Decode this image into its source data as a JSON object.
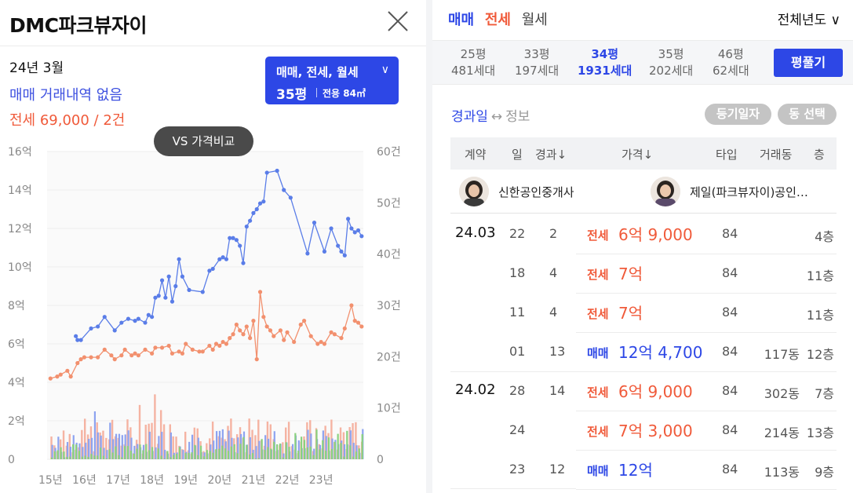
{
  "header": {
    "title": "DMC파크뷰자이"
  },
  "summary": {
    "month": "24년 3월",
    "trade_status": "매매 거래내역 없음",
    "jeonse_status": "전세 69,000 / 2건"
  },
  "type_button": {
    "deal_types": "매매, 전세, 월세",
    "pyeong": "35평",
    "area": "전용 84㎡"
  },
  "vs_badge": "VS 가격비교",
  "chart": {
    "y_left_ticks": [
      "16억",
      "14억",
      "12억",
      "10억",
      "8억",
      "6억",
      "4억",
      "2억",
      "0"
    ],
    "y_right_ticks": [
      "60건",
      "50건",
      "40건",
      "30건",
      "20건",
      "10건",
      "0"
    ],
    "x_ticks": [
      "15년",
      "16년",
      "17년",
      "18년",
      "19년",
      "20년",
      "21년",
      "22년",
      "23년"
    ]
  },
  "chart_data": {
    "type": "line",
    "x_unit": "year",
    "ylim": [
      0,
      16
    ],
    "y2lim": [
      0,
      60
    ],
    "grid": true,
    "colors": {
      "trade": "#5a7de8",
      "jeonse": "#f2906e",
      "vol_trade": "#8da3f0",
      "vol_jeonse": "#f5b3a2",
      "vol_monthly": "#8ad17e"
    },
    "series": [
      {
        "x": [
          2015.75,
          2015.8,
          2015.9,
          2016.2,
          2016.4,
          2016.6,
          2016.9,
          2017.1,
          2017.3,
          2017.5,
          2017.6,
          2017.8,
          2017.9,
          2018.0,
          2018.1,
          2018.2,
          2018.3,
          2018.4,
          2018.5,
          2018.6,
          2018.7,
          2018.8,
          2018.9,
          2019.1,
          2019.5,
          2019.7,
          2019.8,
          2020.0,
          2020.1,
          2020.2,
          2020.3,
          2020.4,
          2020.5,
          2020.6,
          2020.7,
          2020.8,
          2020.9,
          2021.0,
          2021.1,
          2021.2,
          2021.3,
          2021.4,
          2021.7,
          2021.9,
          2022.1,
          2022.6,
          2022.8,
          2023.1,
          2023.3,
          2023.5,
          2023.6,
          2023.7,
          2023.8,
          2023.9,
          2024.0,
          2024.1,
          2024.2
        ],
        "y": [
          6.4,
          6.2,
          6.2,
          6.8,
          6.9,
          7.4,
          6.7,
          7.1,
          7.3,
          7.2,
          7.3,
          7.1,
          7.5,
          7.4,
          8.4,
          8.5,
          9.3,
          8.4,
          9.5,
          8.2,
          9.0,
          10.4,
          9.5,
          8.8,
          8.7,
          9.8,
          9.9,
          10.4,
          10.5,
          10.4,
          11.5,
          11.5,
          11.4,
          11.1,
          10.2,
          12.1,
          12.4,
          12.8,
          13.0,
          13.3,
          13.4,
          14.9,
          15.0,
          14.0,
          13.6,
          10.7,
          12.3,
          10.8,
          12.0,
          11.1,
          10.8,
          10.6,
          12.5,
          12.0,
          11.8,
          11.9,
          11.6
        ],
        "color": "#5a7de8"
      },
      {
        "x": [
          2015.0,
          2015.2,
          2015.3,
          2015.5,
          2015.6,
          2015.8,
          2015.9,
          2016.0,
          2016.2,
          2016.4,
          2016.6,
          2016.8,
          2016.9,
          2017.1,
          2017.2,
          2017.4,
          2017.5,
          2017.6,
          2017.8,
          2018.0,
          2018.1,
          2018.3,
          2018.5,
          2018.6,
          2018.8,
          2018.9,
          2019.0,
          2019.2,
          2019.4,
          2019.5,
          2019.7,
          2019.8,
          2019.9,
          2020.0,
          2020.1,
          2020.2,
          2020.3,
          2020.4,
          2020.5,
          2020.6,
          2020.7,
          2020.8,
          2020.9,
          2021.0,
          2021.1,
          2021.2,
          2021.3,
          2021.4,
          2021.5,
          2021.6,
          2021.8,
          2021.9,
          2022.0,
          2022.2,
          2022.4,
          2022.5,
          2022.7,
          2022.9,
          2023.0,
          2023.1,
          2023.3,
          2023.4,
          2023.6,
          2023.7,
          2023.9,
          2024.0,
          2024.1,
          2024.2
        ],
        "y": [
          4.2,
          4.3,
          4.4,
          4.6,
          4.3,
          5.0,
          5.2,
          5.3,
          5.3,
          5.3,
          5.7,
          5.4,
          5.2,
          5.4,
          5.7,
          5.4,
          5.5,
          5.4,
          5.7,
          5.5,
          5.8,
          5.8,
          5.9,
          5.5,
          5.6,
          5.5,
          6.0,
          5.7,
          5.6,
          5.6,
          5.9,
          5.7,
          6.0,
          5.9,
          6.1,
          6.0,
          6.3,
          6.5,
          7.0,
          6.7,
          6.5,
          6.9,
          6.3,
          7.2,
          5.2,
          8.7,
          7.4,
          6.9,
          6.7,
          6.4,
          6.7,
          6.2,
          6.6,
          6.1,
          7.0,
          7.2,
          6.4,
          6.0,
          6.1,
          6.0,
          6.6,
          6.5,
          6.3,
          6.8,
          8.0,
          7.2,
          7.1,
          6.9
        ],
        "color": "#f2906e"
      }
    ]
  },
  "right": {
    "tabs": [
      "매매",
      "전세",
      "월세"
    ],
    "year_select": "전체년도 ∨",
    "pyeongs": [
      {
        "size": "25평",
        "units": "481세대",
        "active": false
      },
      {
        "size": "33평",
        "units": "197세대",
        "active": false
      },
      {
        "size": "34평",
        "units": "1931세대",
        "active": true
      },
      {
        "size": "35평",
        "units": "202세대",
        "active": false
      },
      {
        "size": "46평",
        "units": "62세대",
        "active": false
      }
    ],
    "calc_button": "평풀기",
    "toggle_on": "경과일",
    "toggle_arrow": "↔",
    "toggle_off": "정보",
    "pill_registry": "등기일자",
    "pill_dong": "동 선택",
    "headers": {
      "contract": "계약",
      "day": "일",
      "elapsed": "경과↓",
      "price": "가격↓",
      "type": "타입",
      "dong": "거래동",
      "floor": "층"
    },
    "agents": [
      "신한공인중개사",
      "제일(파크뷰자이)공인…"
    ],
    "rows": [
      {
        "date": "24.03",
        "day": "22",
        "elapsed": "2",
        "kind": "전세",
        "price": "6억 9,000",
        "type": "84",
        "dong": "",
        "floor": "4층"
      },
      {
        "date": "",
        "day": "18",
        "elapsed": "4",
        "kind": "전세",
        "price": "7억",
        "type": "84",
        "dong": "",
        "floor": "11층"
      },
      {
        "date": "",
        "day": "11",
        "elapsed": "4",
        "kind": "전세",
        "price": "7억",
        "type": "84",
        "dong": "",
        "floor": "11층"
      },
      {
        "date": "",
        "day": "01",
        "elapsed": "13",
        "kind": "매매",
        "price": "12억 4,700",
        "type": "84",
        "dong": "117동",
        "floor": "12층"
      },
      {
        "date": "24.02",
        "day": "28",
        "elapsed": "14",
        "kind": "전세",
        "price": "6억 9,000",
        "type": "84",
        "dong": "302동",
        "floor": "7층"
      },
      {
        "date": "",
        "day": "24",
        "elapsed": "",
        "kind": "전세",
        "price": "7억 3,000",
        "type": "84",
        "dong": "214동",
        "floor": "13층"
      },
      {
        "date": "",
        "day": "23",
        "elapsed": "12",
        "kind": "매매",
        "price": "12억",
        "type": "84",
        "dong": "113동",
        "floor": "9층"
      }
    ]
  }
}
